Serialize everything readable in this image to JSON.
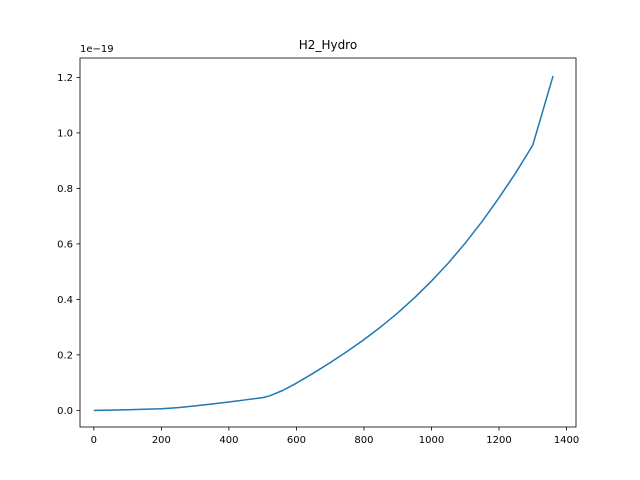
{
  "chart_data": {
    "type": "line",
    "title": "H2_Hydro",
    "xlabel": "",
    "ylabel": "",
    "y_offset_label": "1e−19",
    "xlim": [
      -41,
      1428
    ],
    "ylim": [
      -0.06,
      1.27
    ],
    "x_ticks": [
      0,
      200,
      400,
      600,
      800,
      1000,
      1200,
      1400
    ],
    "x_tick_labels": [
      "0",
      "200",
      "400",
      "600",
      "800",
      "1000",
      "1200",
      "1400"
    ],
    "y_ticks": [
      0.0,
      0.2,
      0.4,
      0.6,
      0.8,
      1.0,
      1.2
    ],
    "y_tick_labels": [
      "0.0",
      "0.2",
      "0.4",
      "0.6",
      "0.8",
      "1.0",
      "1.2"
    ],
    "grid": false,
    "series": [
      {
        "color": "#1f77b4",
        "x": [
          0,
          50,
          100,
          150,
          200,
          250,
          300,
          350,
          400,
          450,
          500,
          520,
          560,
          600,
          650,
          700,
          750,
          800,
          850,
          900,
          950,
          1000,
          1050,
          1100,
          1150,
          1200,
          1250,
          1300,
          1360
        ],
        "y": [
          0.0,
          0.001,
          0.002,
          0.004,
          0.006,
          0.01,
          0.016,
          0.023,
          0.03,
          0.038,
          0.046,
          0.052,
          0.072,
          0.098,
          0.134,
          0.172,
          0.212,
          0.255,
          0.301,
          0.351,
          0.406,
          0.466,
          0.531,
          0.603,
          0.681,
          0.766,
          0.857,
          0.956,
          1.205
        ]
      }
    ]
  }
}
